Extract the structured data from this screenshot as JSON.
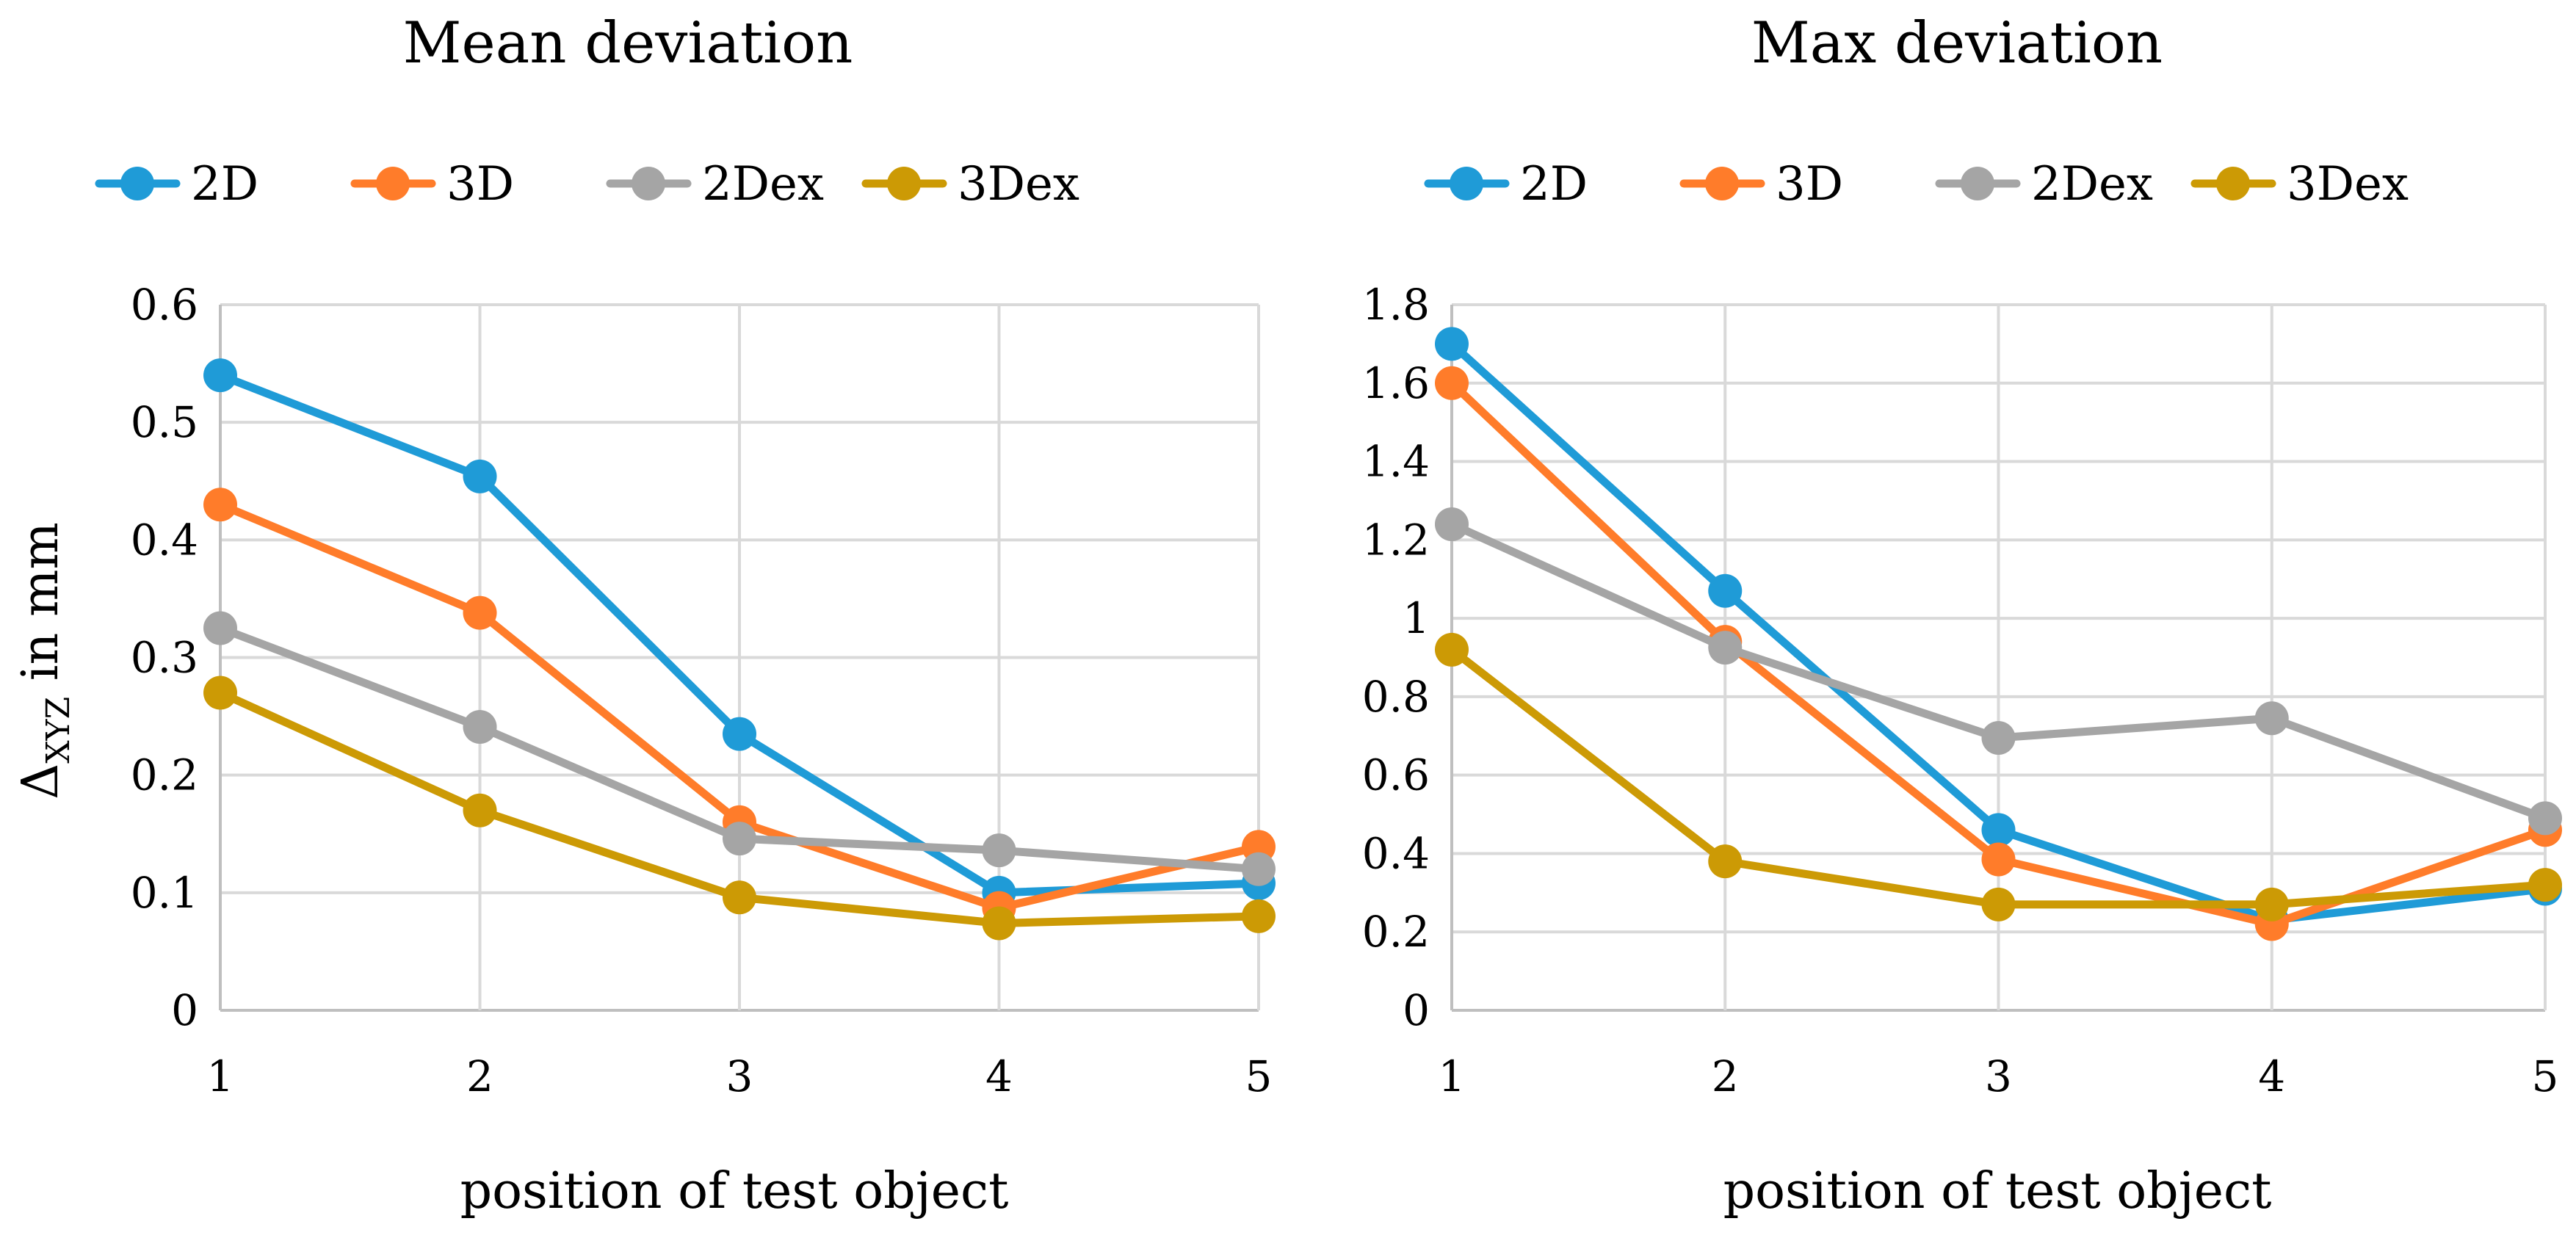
{
  "colors": {
    "2D": "#1f9bd7",
    "3D": "#ff7c2a",
    "2Dex": "#a5a5a5",
    "3Dex": "#cc9a05",
    "grid": "#d9d9d9"
  },
  "legend": [
    "2D",
    "3D",
    "2Dex",
    "3Dex"
  ],
  "ylabel": {
    "main": "Δ",
    "sub": "XYZ",
    "rest": " in mm"
  },
  "chart_data": [
    {
      "type": "line",
      "title": "Mean deviation",
      "xlabel": "position of test object",
      "ylabel": "ΔXYZ in mm",
      "categories": [
        "1",
        "2",
        "3",
        "4",
        "5"
      ],
      "ylim": [
        0,
        0.6
      ],
      "yticks": [
        "0",
        "0.1",
        "0.2",
        "0.3",
        "0.4",
        "0.5",
        "0.6"
      ],
      "legend_position": "top",
      "series": [
        {
          "name": "2D",
          "values": [
            0.54,
            0.454,
            0.235,
            0.1,
            0.108
          ]
        },
        {
          "name": "3D",
          "values": [
            0.43,
            0.338,
            0.16,
            0.087,
            0.139
          ]
        },
        {
          "name": "2Dex",
          "values": [
            0.325,
            0.241,
            0.146,
            0.136,
            0.12
          ]
        },
        {
          "name": "3Dex",
          "values": [
            0.27,
            0.17,
            0.096,
            0.074,
            0.08
          ]
        }
      ]
    },
    {
      "type": "line",
      "title": "Max deviation",
      "xlabel": "position of test object",
      "ylabel": "",
      "categories": [
        "1",
        "2",
        "3",
        "4",
        "5"
      ],
      "ylim": [
        0,
        1.8
      ],
      "yticks": [
        "0",
        "0.2",
        "0.4",
        "0.6",
        "0.8",
        "1",
        "1.2",
        "1.4",
        "1.6",
        "1.8"
      ],
      "legend_position": "top",
      "series": [
        {
          "name": "2D",
          "values": [
            1.7,
            1.07,
            0.46,
            0.23,
            0.31
          ]
        },
        {
          "name": "3D",
          "values": [
            1.6,
            0.94,
            0.385,
            0.22,
            0.46
          ]
        },
        {
          "name": "2Dex",
          "values": [
            1.24,
            0.925,
            0.695,
            0.745,
            0.49
          ]
        },
        {
          "name": "3Dex",
          "values": [
            0.92,
            0.38,
            0.27,
            0.27,
            0.32
          ]
        }
      ]
    }
  ]
}
